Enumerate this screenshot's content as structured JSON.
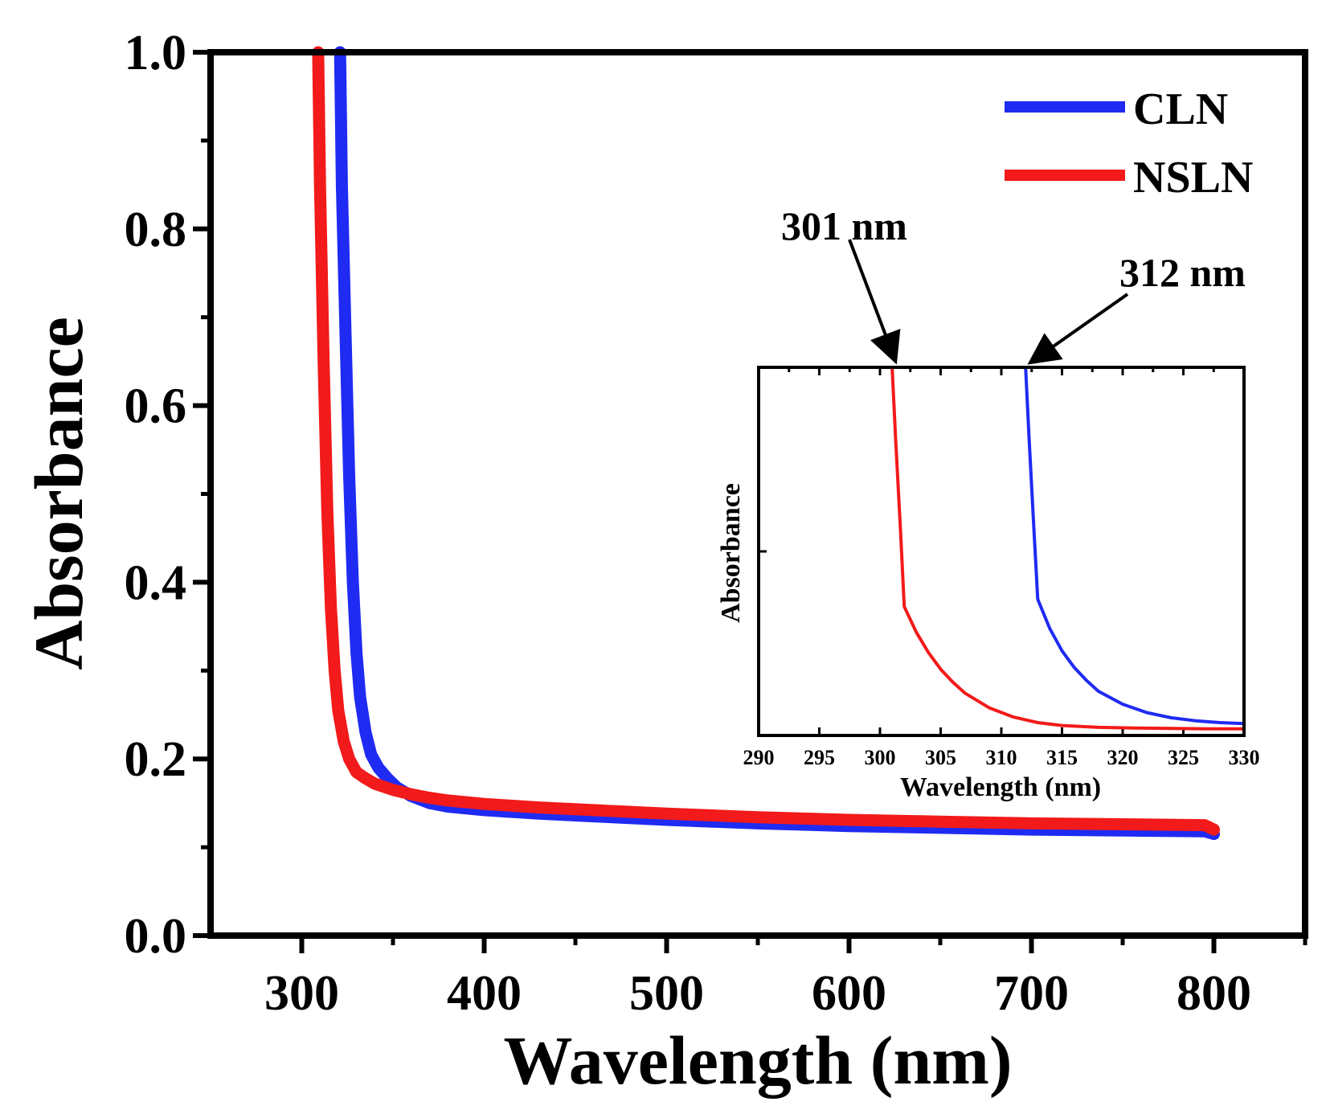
{
  "chart_data": [
    {
      "type": "line",
      "xlabel": "Wavelength (nm)",
      "ylabel": "Absorbance",
      "xlim": [
        250,
        850
      ],
      "ylim": [
        0.0,
        1.0
      ],
      "xticks": [
        300,
        400,
        500,
        600,
        700,
        800
      ],
      "yticks": [
        0.0,
        0.2,
        0.4,
        0.6,
        0.8,
        1.0
      ],
      "xtick_labels": [
        "300",
        "400",
        "500",
        "600",
        "700",
        "800"
      ],
      "ytick_labels": [
        "0.0",
        "0.2",
        "0.4",
        "0.6",
        "0.8",
        "1.0"
      ],
      "legend_position": "top-right",
      "series": [
        {
          "name": "CLN",
          "color": "#1f2bf2",
          "x": [
            321,
            322,
            324,
            326,
            328,
            330,
            332,
            335,
            338,
            342,
            347,
            352,
            360,
            370,
            380,
            400,
            430,
            460,
            500,
            550,
            600,
            650,
            700,
            750,
            795,
            800
          ],
          "y": [
            1.0,
            0.85,
            0.68,
            0.52,
            0.4,
            0.32,
            0.27,
            0.23,
            0.205,
            0.19,
            0.178,
            0.168,
            0.158,
            0.15,
            0.146,
            0.142,
            0.138,
            0.135,
            0.131,
            0.127,
            0.124,
            0.122,
            0.12,
            0.119,
            0.118,
            0.115
          ]
        },
        {
          "name": "NSLN",
          "color": "#f21a1a",
          "x": [
            309,
            310,
            312,
            314,
            316,
            318,
            320,
            323,
            326,
            330,
            335,
            340,
            350,
            360,
            370,
            380,
            400,
            430,
            460,
            500,
            550,
            600,
            650,
            700,
            750,
            795,
            800
          ],
          "y": [
            1.0,
            0.85,
            0.65,
            0.48,
            0.37,
            0.3,
            0.255,
            0.22,
            0.2,
            0.185,
            0.178,
            0.172,
            0.165,
            0.16,
            0.156,
            0.153,
            0.149,
            0.145,
            0.142,
            0.138,
            0.134,
            0.131,
            0.129,
            0.127,
            0.126,
            0.125,
            0.12
          ]
        }
      ],
      "annotations": [
        {
          "text": "301 nm",
          "points_to_x": 301
        },
        {
          "text": "312 nm",
          "points_to_x": 312
        }
      ]
    },
    {
      "type": "line",
      "title": "inset",
      "xlabel": "Wavelength (nm)",
      "ylabel": "Absorbance",
      "xlim": [
        290,
        330
      ],
      "ylim": [
        0.0,
        1.0
      ],
      "xticks": [
        290,
        295,
        300,
        305,
        310,
        315,
        320,
        325,
        330
      ],
      "xtick_labels": [
        "290",
        "295",
        "300",
        "305",
        "310",
        "315",
        "320",
        "325",
        "330"
      ],
      "series": [
        {
          "name": "CLN",
          "color": "#1f2bf2",
          "x": [
            312,
            312.3,
            312.7,
            313,
            314,
            315,
            316,
            317,
            318,
            320,
            322,
            324,
            326,
            328,
            330
          ],
          "y": [
            1.0,
            0.8,
            0.55,
            0.37,
            0.29,
            0.23,
            0.185,
            0.15,
            0.12,
            0.085,
            0.062,
            0.048,
            0.04,
            0.035,
            0.032
          ]
        },
        {
          "name": "NSLN",
          "color": "#f21a1a",
          "x": [
            301,
            301.3,
            301.7,
            302,
            303,
            304,
            305,
            306,
            307,
            309,
            311,
            313,
            315,
            318,
            321,
            324,
            327,
            330
          ],
          "y": [
            1.0,
            0.8,
            0.55,
            0.35,
            0.28,
            0.225,
            0.18,
            0.145,
            0.115,
            0.075,
            0.05,
            0.035,
            0.027,
            0.022,
            0.02,
            0.019,
            0.018,
            0.018
          ]
        }
      ]
    }
  ]
}
